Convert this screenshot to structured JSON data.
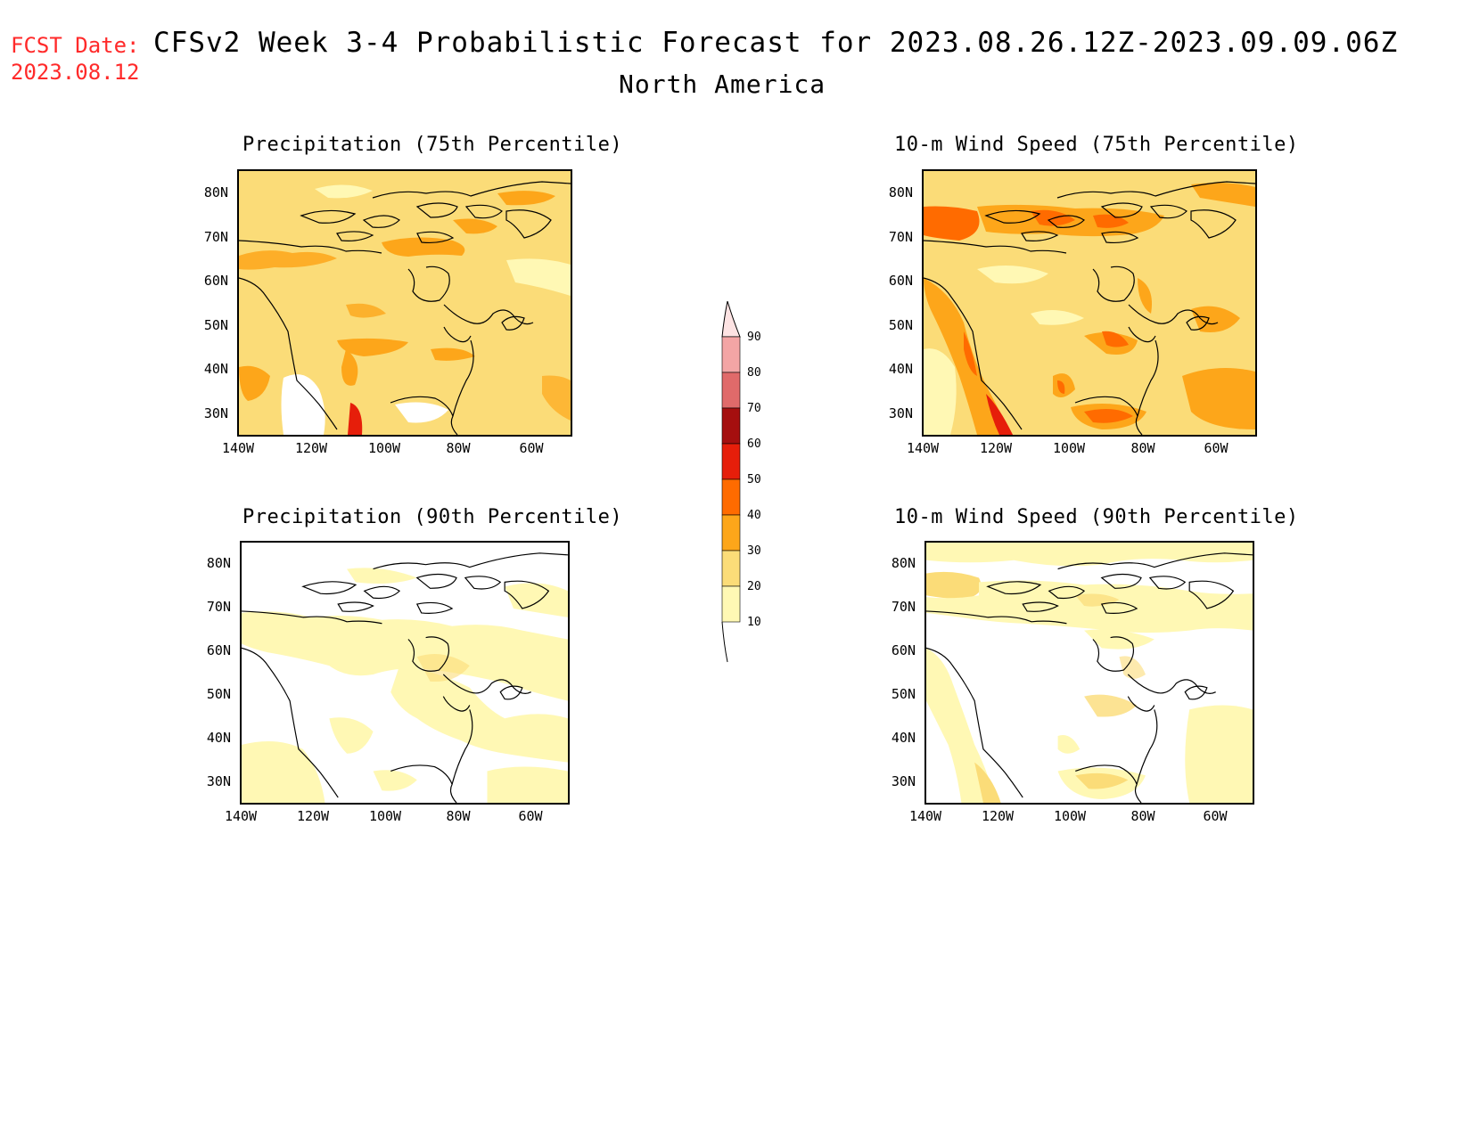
{
  "header": {
    "fcst_label": "FCST Date:",
    "fcst_date": "2023.08.12",
    "title": "CFSv2 Week 3-4 Probabilistic Forecast for 2023.08.26.12Z-2023.09.09.06Z",
    "region": "North America"
  },
  "panels": [
    {
      "title": "Precipitation (75th Percentile)",
      "variable": "precipitation",
      "percentile": 75,
      "base_color": "#fbdc78"
    },
    {
      "title": "10-m Wind Speed (75th Percentile)",
      "variable": "wind_speed_10m",
      "percentile": 75,
      "base_color": "#fbdc78"
    },
    {
      "title": "Precipitation (90th Percentile)",
      "variable": "precipitation",
      "percentile": 90,
      "base_color": "#ffffff"
    },
    {
      "title": "10-m Wind Speed (90th Percentile)",
      "variable": "wind_speed_10m",
      "percentile": 90,
      "base_color": "#ffffff"
    }
  ],
  "lat_labels": [
    "80N",
    "70N",
    "60N",
    "50N",
    "40N",
    "30N"
  ],
  "lon_labels": [
    "140W",
    "120W",
    "100W",
    "80W",
    "60W"
  ],
  "colorbar": {
    "levels": [
      "90",
      "80",
      "70",
      "60",
      "50",
      "40",
      "30",
      "20",
      "10"
    ],
    "colors": [
      "#fde3e3",
      "#f3a5a5",
      "#e06a6a",
      "#a50f0f",
      "#e61e0a",
      "#ff6b00",
      "#fda61a",
      "#fbdc78",
      "#fff8b4"
    ]
  },
  "legend_colors": {
    "c10": "#fff8b4",
    "c20": "#fbdc78",
    "c30": "#fda61a",
    "c40": "#ff6b00",
    "c50": "#e61e0a",
    "c60": "#a50f0f"
  }
}
